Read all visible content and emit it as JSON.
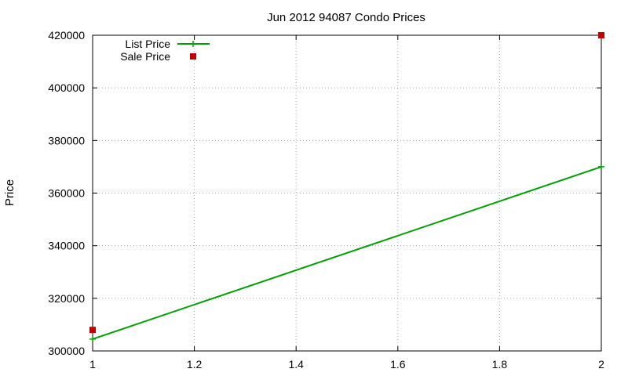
{
  "chart_data": {
    "type": "line",
    "title": "Jun 2012 94087 Condo Prices",
    "xlabel": "",
    "ylabel": "Price",
    "xlim": [
      1,
      2
    ],
    "ylim": [
      300000,
      420000
    ],
    "x_ticks": [
      1,
      1.2,
      1.4,
      1.6,
      1.8,
      2
    ],
    "x_tick_labels": [
      "1",
      "1.2",
      "1.4",
      "1.6",
      "1.8",
      "2"
    ],
    "y_ticks": [
      300000,
      320000,
      340000,
      360000,
      380000,
      400000,
      420000
    ],
    "y_tick_labels": [
      "300000",
      "320000",
      "340000",
      "360000",
      "380000",
      "400000",
      "420000"
    ],
    "grid": true,
    "legend_position": "top-left",
    "series": [
      {
        "name": "List Price",
        "style": "line+plus",
        "color": "#00a000",
        "x": [
          1,
          2
        ],
        "y": [
          304500,
          370000
        ]
      },
      {
        "name": "Sale Price",
        "style": "square",
        "color": "#c00000",
        "x": [
          1,
          2
        ],
        "y": [
          308000,
          420000
        ]
      }
    ]
  }
}
